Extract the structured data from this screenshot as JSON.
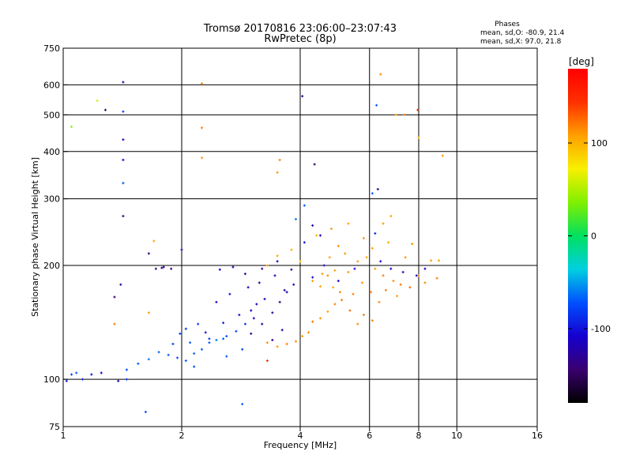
{
  "chart_data": {
    "type": "scatter",
    "title": "Tromsø 20170816 23:06:00–23:07:43",
    "subtitle": "RwPretec (8p)",
    "xlabel": "Frequency [MHz]",
    "ylabel": "Stationary phase Virtual Height [km]",
    "x_scale": "log",
    "y_scale": "log",
    "xlim": [
      1,
      16
    ],
    "ylim": [
      75,
      750
    ],
    "x_ticks": [
      1,
      2,
      4,
      6,
      8,
      10,
      16
    ],
    "x_tick_labels": [
      "1",
      "2",
      "4",
      "6",
      "8",
      "10",
      "16"
    ],
    "y_ticks": [
      75,
      100,
      200,
      300,
      400,
      500,
      600,
      750
    ],
    "y_tick_labels": [
      "75",
      "100",
      "200",
      "300",
      "400",
      "500",
      "600",
      "750"
    ],
    "grid": true,
    "stats": {
      "heading": "Phases",
      "line_o": "mean, sd,O: -80.9, 21.4",
      "line_x": "mean, sd,X: 97.0, 21.8"
    },
    "colorbar": {
      "label": "[deg]",
      "range": [
        -180,
        180
      ],
      "ticks": [
        100,
        0,
        -100
      ],
      "tick_labels": [
        "100",
        "0",
        "-100"
      ]
    },
    "series": [
      {
        "points": [
          [
            1.02,
            99,
            -95
          ],
          [
            1.05,
            103,
            -80
          ],
          [
            1.08,
            104,
            -70
          ],
          [
            1.12,
            100,
            -90
          ],
          [
            1.18,
            103,
            -100
          ],
          [
            1.25,
            104,
            -110
          ],
          [
            1.38,
            99,
            -120
          ],
          [
            1.45,
            106,
            -75
          ],
          [
            1.55,
            110,
            -70
          ],
          [
            1.65,
            113,
            -60
          ],
          [
            1.75,
            118,
            -65
          ],
          [
            1.85,
            116,
            -70
          ],
          [
            1.95,
            114,
            -75
          ],
          [
            2.05,
            112,
            -70
          ],
          [
            2.15,
            117,
            -65
          ],
          [
            2.25,
            120,
            -70
          ],
          [
            2.35,
            125,
            -70
          ],
          [
            2.45,
            127,
            -60
          ],
          [
            2.6,
            130,
            -75
          ],
          [
            2.75,
            134,
            -80
          ],
          [
            2.9,
            140,
            -85
          ],
          [
            1.9,
            124,
            -80
          ],
          [
            2.05,
            136,
            -85
          ],
          [
            2.3,
            133,
            -100
          ],
          [
            2.55,
            141,
            -95
          ],
          [
            2.8,
            148,
            -100
          ],
          [
            3.0,
            152,
            -110
          ],
          [
            3.1,
            158,
            -120
          ],
          [
            3.25,
            163,
            -115
          ],
          [
            3.4,
            150,
            -130
          ],
          [
            3.55,
            160,
            -140
          ],
          [
            3.7,
            170,
            -120
          ],
          [
            3.85,
            178,
            -110
          ],
          [
            3.0,
            132,
            -125
          ],
          [
            3.2,
            140,
            -130
          ],
          [
            3.4,
            127,
            -135
          ],
          [
            3.6,
            135,
            -120
          ],
          [
            2.5,
            195,
            -110
          ],
          [
            2.7,
            198,
            -120
          ],
          [
            2.9,
            190,
            -125
          ],
          [
            3.2,
            196,
            -130
          ],
          [
            3.5,
            205,
            -120
          ],
          [
            3.8,
            195,
            -125
          ],
          [
            4.1,
            230,
            -100
          ],
          [
            4.3,
            255,
            -115
          ],
          [
            4.5,
            240,
            -110
          ],
          [
            1.72,
            196,
            -135
          ],
          [
            1.8,
            198,
            -130
          ],
          [
            1.88,
            196,
            -140
          ],
          [
            1.65,
            215,
            -140
          ],
          [
            2.0,
            220,
            -120
          ],
          [
            3.3,
            125,
            115
          ],
          [
            3.5,
            122,
            110
          ],
          [
            3.7,
            124,
            120
          ],
          [
            3.9,
            126,
            115
          ],
          [
            4.05,
            130,
            110
          ],
          [
            4.2,
            133,
            115
          ],
          [
            4.3,
            142,
            120
          ],
          [
            4.5,
            145,
            112
          ],
          [
            4.7,
            151,
            105
          ],
          [
            4.9,
            158,
            118
          ],
          [
            5.1,
            162,
            122
          ],
          [
            5.35,
            152,
            125
          ],
          [
            5.6,
            140,
            115
          ],
          [
            5.8,
            148,
            120
          ],
          [
            6.1,
            143,
            118
          ],
          [
            4.3,
            182,
            110
          ],
          [
            4.5,
            176,
            105
          ],
          [
            4.7,
            188,
            115
          ],
          [
            4.9,
            194,
            108
          ],
          [
            5.3,
            192,
            112
          ],
          [
            5.6,
            205,
            110
          ],
          [
            5.9,
            210,
            105
          ],
          [
            6.2,
            196,
            110
          ],
          [
            6.5,
            188,
            120
          ],
          [
            6.9,
            182,
            115
          ],
          [
            7.2,
            178,
            122
          ],
          [
            7.6,
            175,
            125
          ],
          [
            8.0,
            188,
            110
          ],
          [
            8.3,
            180,
            115
          ],
          [
            8.9,
            185,
            118
          ],
          [
            3.3,
            200,
            110
          ],
          [
            3.5,
            212,
            105
          ],
          [
            3.8,
            220,
            102
          ],
          [
            4.0,
            205,
            95
          ],
          [
            4.4,
            240,
            100
          ],
          [
            4.8,
            250,
            110
          ],
          [
            5.0,
            225,
            115
          ],
          [
            5.3,
            258,
            108
          ],
          [
            5.8,
            236,
            112
          ],
          [
            6.5,
            258,
            110
          ],
          [
            6.8,
            270,
            108
          ],
          [
            4.3,
            186,
            -100
          ],
          [
            4.6,
            200,
            -115
          ],
          [
            5.0,
            182,
            -110
          ],
          [
            5.5,
            196,
            -105
          ],
          [
            6.4,
            205,
            -110
          ],
          [
            6.8,
            196,
            -112
          ],
          [
            7.3,
            192,
            -100
          ],
          [
            7.9,
            188,
            -105
          ],
          [
            8.3,
            196,
            -110
          ],
          [
            6.3,
            318,
            -130
          ],
          [
            6.2,
            243,
            -90
          ],
          [
            3.9,
            265,
            -60
          ],
          [
            4.1,
            288,
            -70
          ],
          [
            1.42,
            430,
            -110
          ],
          [
            1.42,
            510,
            -80
          ],
          [
            1.42,
            610,
            -120
          ],
          [
            1.42,
            330,
            -70
          ],
          [
            1.42,
            380,
            -105
          ],
          [
            1.42,
            270,
            -130
          ],
          [
            1.28,
            515,
            -150
          ],
          [
            1.22,
            545,
            60
          ],
          [
            1.05,
            465,
            40
          ],
          [
            2.25,
            605,
            115
          ],
          [
            2.25,
            462,
            120
          ],
          [
            2.25,
            385,
            110
          ],
          [
            3.55,
            380,
            118
          ],
          [
            3.5,
            352,
            112
          ],
          [
            4.05,
            560,
            -130
          ],
          [
            4.35,
            370,
            -150
          ],
          [
            6.4,
            640,
            115
          ],
          [
            6.25,
            530,
            -70
          ],
          [
            7.0,
            500,
            110
          ],
          [
            7.35,
            500,
            120
          ],
          [
            7.95,
            515,
            140
          ],
          [
            8.0,
            435,
            100
          ],
          [
            9.2,
            390,
            112
          ],
          [
            6.1,
            310,
            -70
          ],
          [
            1.45,
            100,
            -85
          ],
          [
            1.62,
            82,
            -75
          ],
          [
            2.85,
            86,
            -70
          ],
          [
            3.3,
            112,
            150
          ],
          [
            1.78,
            197,
            -140
          ],
          [
            1.7,
            232,
            105
          ],
          [
            2.45,
            160,
            -110
          ],
          [
            2.65,
            168,
            -100
          ],
          [
            2.95,
            175,
            -115
          ],
          [
            3.15,
            180,
            -120
          ],
          [
            3.45,
            188,
            -125
          ],
          [
            3.65,
            172,
            -130
          ],
          [
            3.05,
            145,
            -105
          ],
          [
            2.85,
            120,
            -80
          ],
          [
            2.55,
            128,
            -70
          ],
          [
            4.55,
            190,
            110
          ],
          [
            4.85,
            175,
            105
          ],
          [
            5.05,
            170,
            115
          ],
          [
            5.45,
            168,
            118
          ],
          [
            5.75,
            180,
            112
          ],
          [
            6.05,
            170,
            120
          ],
          [
            6.35,
            160,
            115
          ],
          [
            6.6,
            172,
            118
          ],
          [
            7.05,
            166,
            108
          ],
          [
            4.75,
            210,
            108
          ],
          [
            5.2,
            215,
            112
          ],
          [
            6.1,
            222,
            110
          ],
          [
            6.7,
            230,
            105
          ],
          [
            7.4,
            210,
            112
          ],
          [
            7.7,
            228,
            115
          ],
          [
            8.6,
            206,
            110
          ],
          [
            9.0,
            206,
            108
          ],
          [
            2.2,
            140,
            -80
          ],
          [
            2.35,
            128,
            -85
          ],
          [
            2.1,
            125,
            -72
          ],
          [
            1.98,
            132,
            -78
          ],
          [
            2.15,
            108,
            -75
          ],
          [
            2.6,
            115,
            -70
          ],
          [
            1.35,
            165,
            -140
          ],
          [
            1.4,
            178,
            -125
          ],
          [
            1.35,
            140,
            120
          ],
          [
            1.65,
            150,
            110
          ]
        ]
      }
    ]
  }
}
